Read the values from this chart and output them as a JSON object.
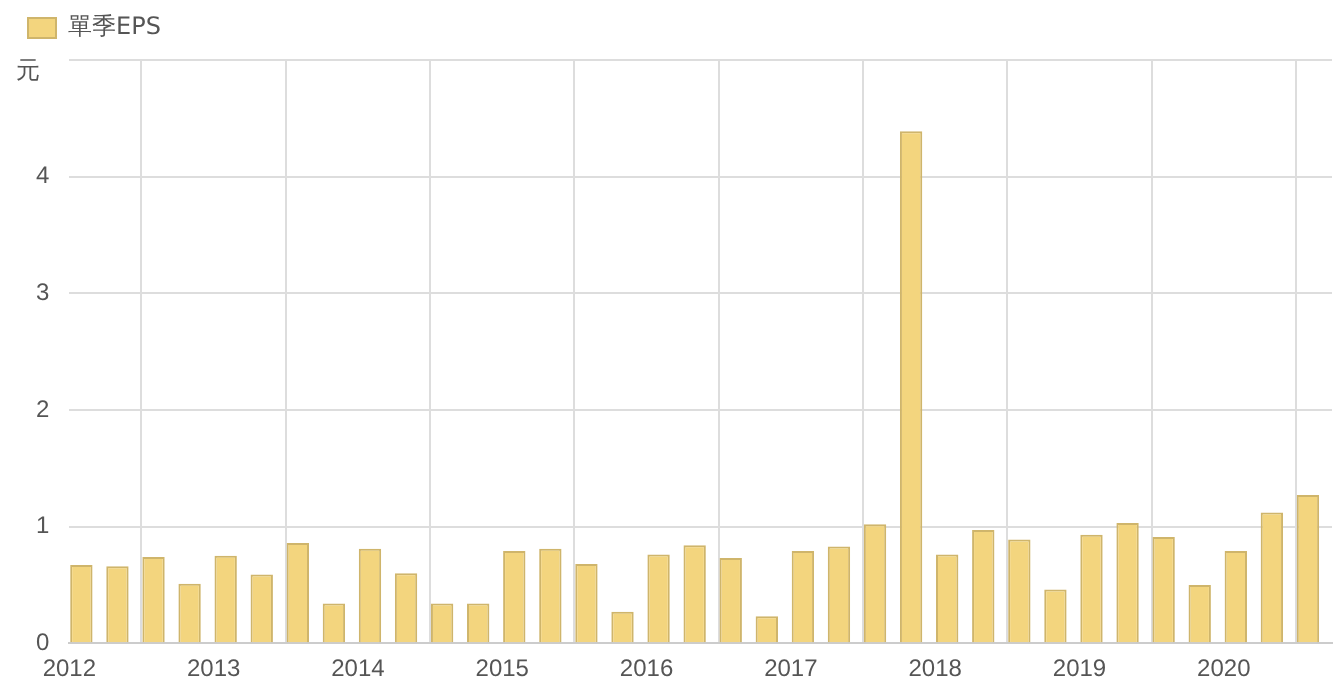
{
  "chart_data": {
    "type": "bar",
    "ylabel": "元",
    "x": [
      "2012-02",
      "2012-05",
      "2012-08",
      "2012-11",
      "2013-02",
      "2013-05",
      "2013-08",
      "2013-11",
      "2014-02",
      "2014-05",
      "2014-08",
      "2014-11",
      "2015-02",
      "2015-05",
      "2015-08",
      "2015-11",
      "2016-02",
      "2016-05",
      "2016-08",
      "2016-11",
      "2017-02",
      "2017-05",
      "2017-08",
      "2017-11",
      "2018-02",
      "2018-05",
      "2018-08",
      "2018-11",
      "2019-02",
      "2019-05",
      "2019-08",
      "2019-11",
      "2020-02",
      "2020-05",
      "2020-08"
    ],
    "series": [
      {
        "name": "單季EPS",
        "color": "#f3d57e",
        "values": [
          0.67,
          0.66,
          0.74,
          0.51,
          0.75,
          0.59,
          0.86,
          0.34,
          0.81,
          0.6,
          0.34,
          0.34,
          0.79,
          0.81,
          0.68,
          0.27,
          0.76,
          0.84,
          0.73,
          0.23,
          0.79,
          0.83,
          1.02,
          4.39,
          0.76,
          0.97,
          0.89,
          0.46,
          0.93,
          1.03,
          0.91,
          0.5,
          0.79,
          1.12,
          1.27
        ]
      }
    ],
    "xlim": [
      "2012-01",
      "2020-10"
    ],
    "xticks": [
      "2012",
      "2013",
      "2014",
      "2015",
      "2016",
      "2017",
      "2018",
      "2019",
      "2020"
    ],
    "ylim": [
      0,
      5
    ],
    "yticks": [
      0,
      1,
      2,
      3,
      4,
      {
        "value": 5,
        "label": null
      }
    ],
    "grid": true,
    "legend": "top left"
  }
}
